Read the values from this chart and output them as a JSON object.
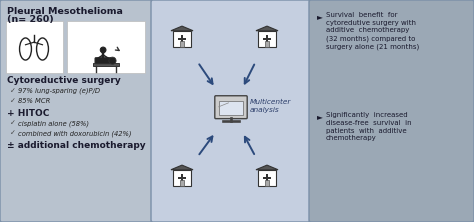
{
  "bg_color": "#cdd5e0",
  "panel_left_color": "#b8c2ce",
  "panel_mid_color": "#c5cfe0",
  "panel_right_color": "#9ba8b5",
  "border_color": "#7a8fa8",
  "title_left_line1": "Pleural Mesothelioma",
  "title_left_line2": "(n= 260)",
  "subtitle_surgery": "Cytoreductive surgery",
  "bullet_surgery": [
    "97% lung-sparing (e)P/D",
    "85% MCR"
  ],
  "hitoc_title": "+ HITOC",
  "bullet_hitoc": [
    "cisplatin alone (58%)",
    "combined with doxorubicin (42%)"
  ],
  "extra_chemo": "± additional chemotherapy",
  "multicenter_label": "Multicenter\nanalysis",
  "bullet_right_1": "Survival  benefit  for\ncytoredutive surgery with\nadditive  chemotherapy\n(32 months) compared to\nsurgery alone (21 months)",
  "bullet_right_2": "Significantly  increased\ndisease-free  survival  in\npatients  with  additive\nchemotherapy",
  "arrow_color": "#2c4a7c",
  "icon_box_color": "#ffffff"
}
